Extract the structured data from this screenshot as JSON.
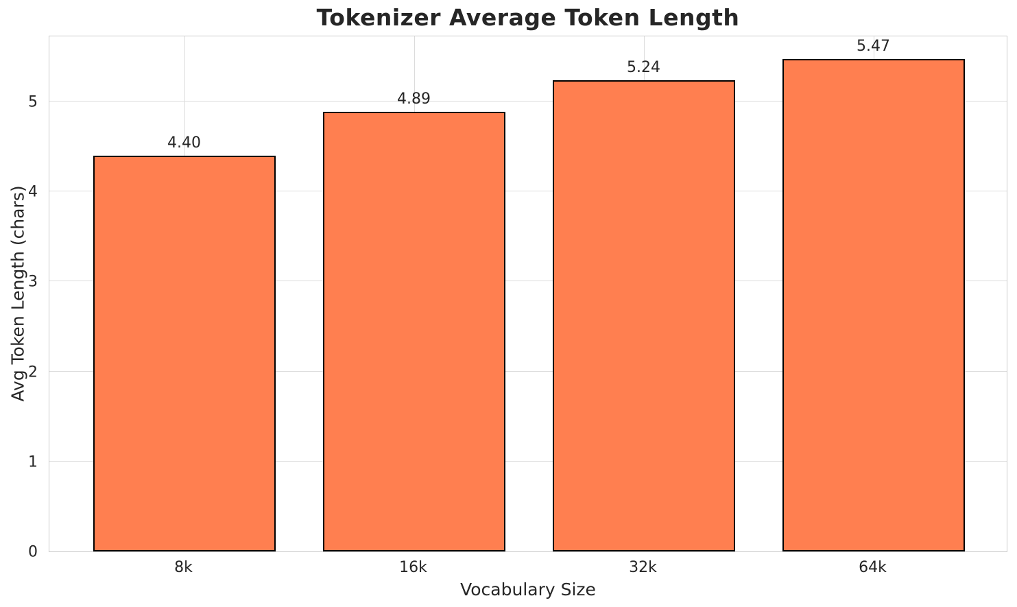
{
  "chart_data": {
    "type": "bar",
    "title": "Tokenizer Average Token Length",
    "xlabel": "Vocabulary Size",
    "ylabel": "Avg Token Length (chars)",
    "categories": [
      "8k",
      "16k",
      "32k",
      "64k"
    ],
    "values": [
      4.4,
      4.89,
      5.24,
      5.47
    ],
    "value_labels": [
      "4.40",
      "4.89",
      "5.24",
      "5.47"
    ],
    "ytick_labels": [
      "0",
      "1",
      "2",
      "3",
      "4",
      "5"
    ],
    "ytick_values": [
      0,
      1,
      2,
      3,
      4,
      5
    ],
    "ylim": [
      0,
      5.74
    ],
    "grid": true,
    "legend": "none",
    "colors": {
      "bar_fill": "#FF7F50",
      "bar_edge": "#000000",
      "grid": "#DCDCDC",
      "spine": "#C9C9C9",
      "text": "#262626",
      "background": "#FFFFFF"
    }
  }
}
